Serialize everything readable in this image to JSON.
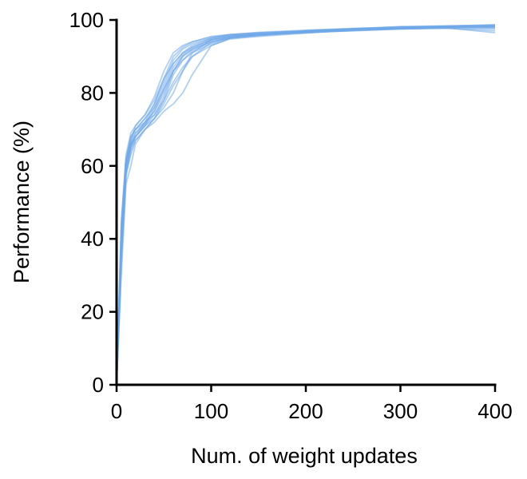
{
  "chart_data": {
    "type": "line",
    "title": "",
    "xlabel": "Num. of weight updates",
    "ylabel": "Performance (%)",
    "xlim": [
      0,
      400
    ],
    "ylim": [
      0,
      100
    ],
    "xticks": [
      "0",
      "100",
      "200",
      "300",
      "400"
    ],
    "yticks": [
      "0",
      "20",
      "40",
      "60",
      "80",
      "100"
    ],
    "grid": false,
    "legend": "none",
    "colors": {
      "series": "#6fa8e8",
      "axis": "#000000"
    },
    "x": [
      0,
      5,
      10,
      15,
      20,
      30,
      40,
      50,
      60,
      70,
      80,
      100,
      120,
      150,
      200,
      250,
      300,
      350,
      400
    ],
    "series": [
      {
        "values": [
          0,
          36,
          59,
          65,
          68,
          71,
          76,
          82,
          88,
          91,
          92.5,
          94.5,
          95.5,
          96,
          96.5,
          97.2,
          97.8,
          98.2,
          98.4
        ]
      },
      {
        "values": [
          0,
          40,
          60,
          66,
          68,
          72,
          74,
          79,
          86,
          90,
          92,
          94,
          95,
          95.8,
          96.8,
          97.3,
          97.6,
          98,
          98.1
        ]
      },
      {
        "values": [
          0,
          30,
          55,
          60,
          66,
          70,
          73,
          76,
          80,
          86,
          91,
          94.5,
          95.5,
          96.2,
          97,
          97.4,
          97.7,
          97.9,
          98
        ]
      },
      {
        "values": [
          0,
          42,
          61,
          68,
          70,
          73,
          77,
          83,
          89,
          92,
          93.5,
          95,
          95.8,
          96.2,
          96.9,
          97.6,
          98,
          98.3,
          98.5
        ]
      },
      {
        "values": [
          0,
          45,
          62,
          67,
          71,
          74,
          78,
          84,
          88,
          91,
          93,
          95,
          96,
          96.5,
          97,
          97.5,
          98.2,
          98.4,
          98.6
        ]
      },
      {
        "values": [
          0,
          33,
          58,
          63,
          67,
          70,
          72,
          75,
          77,
          80,
          85,
          93,
          95,
          96,
          96.5,
          97.1,
          97.5,
          97.8,
          96.5
        ]
      },
      {
        "values": [
          0,
          38,
          60,
          66,
          69,
          72,
          75,
          80,
          86,
          90,
          92,
          94.5,
          95.4,
          96,
          96.8,
          97.3,
          97.7,
          98,
          98.2
        ]
      },
      {
        "values": [
          0,
          44,
          63,
          69,
          71,
          74,
          79,
          86,
          91,
          93,
          94,
          95.5,
          96,
          96.6,
          97.2,
          97.7,
          98.1,
          98.3,
          98.7
        ]
      },
      {
        "values": [
          0,
          35,
          57,
          64,
          67,
          70,
          73,
          78,
          85,
          89,
          91,
          93.5,
          95,
          95.7,
          96.6,
          97,
          97.5,
          97.8,
          97.5
        ]
      },
      {
        "values": [
          0,
          41,
          61,
          67,
          70,
          73,
          76,
          81,
          87,
          90.5,
          92.5,
          94.8,
          95.7,
          96.3,
          97,
          97.6,
          98,
          98.3,
          98.4
        ]
      },
      {
        "values": [
          0,
          37,
          59,
          65,
          68,
          71,
          74,
          78,
          83,
          87,
          90,
          93,
          94.8,
          95.5,
          96.4,
          97.2,
          97.6,
          97.7,
          97
        ]
      },
      {
        "values": [
          0,
          43,
          62,
          68,
          70,
          72,
          77,
          84,
          90,
          92.5,
          94,
          95.3,
          96,
          96.4,
          97.1,
          97.6,
          98,
          98.2,
          98.3
        ]
      },
      {
        "values": [
          0,
          39,
          60,
          66,
          69,
          71.5,
          75,
          81,
          86,
          89,
          91.5,
          94,
          95.2,
          95.9,
          96.7,
          97.3,
          97.8,
          98.1,
          98.2
        ]
      },
      {
        "values": [
          0,
          34,
          58,
          65,
          68,
          71,
          73,
          77,
          82,
          86,
          90,
          93.8,
          95.3,
          96,
          96.8,
          97.4,
          97.9,
          98.1,
          97.8
        ]
      }
    ]
  }
}
